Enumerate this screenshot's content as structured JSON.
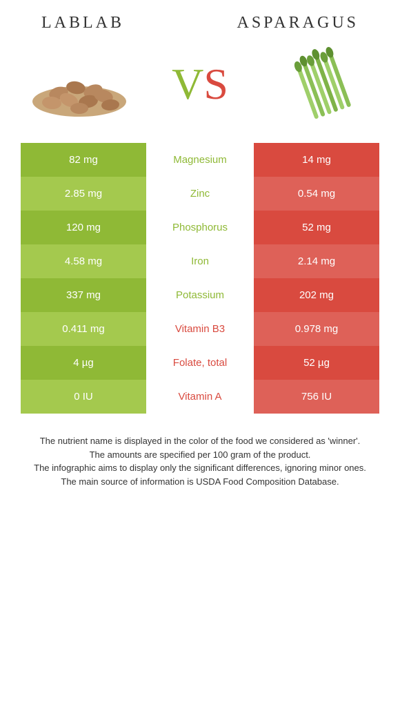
{
  "header": {
    "left_title": "Lablab",
    "right_title": "Asparagus"
  },
  "vs": {
    "v": "V",
    "s": "S"
  },
  "colors": {
    "left_dark": "#8fb936",
    "left_light": "#a4c94e",
    "right_dark": "#d94a3f",
    "right_light": "#de6158",
    "mid_winner_left": "#8fb936",
    "mid_winner_right": "#d94a3f"
  },
  "table": {
    "rows": [
      {
        "left": "82 mg",
        "mid": "Magnesium",
        "right": "14 mg",
        "winner": "left"
      },
      {
        "left": "2.85 mg",
        "mid": "Zinc",
        "right": "0.54 mg",
        "winner": "left"
      },
      {
        "left": "120 mg",
        "mid": "Phosphorus",
        "right": "52 mg",
        "winner": "left"
      },
      {
        "left": "4.58 mg",
        "mid": "Iron",
        "right": "2.14 mg",
        "winner": "left"
      },
      {
        "left": "337 mg",
        "mid": "Potassium",
        "right": "202 mg",
        "winner": "left"
      },
      {
        "left": "0.411 mg",
        "mid": "Vitamin B3",
        "right": "0.978 mg",
        "winner": "right"
      },
      {
        "left": "4 µg",
        "mid": "Folate, total",
        "right": "52 µg",
        "winner": "right"
      },
      {
        "left": "0 IU",
        "mid": "Vitamin A",
        "right": "756 IU",
        "winner": "right"
      }
    ]
  },
  "footer": {
    "line1": "The nutrient name is displayed in the color of the food we considered as 'winner'.",
    "line2": "The amounts are specified per 100 gram of the product.",
    "line3": "The infographic aims to display only the significant differences, ignoring minor ones.",
    "line4": "The main source of information is USDA Food Composition Database."
  }
}
